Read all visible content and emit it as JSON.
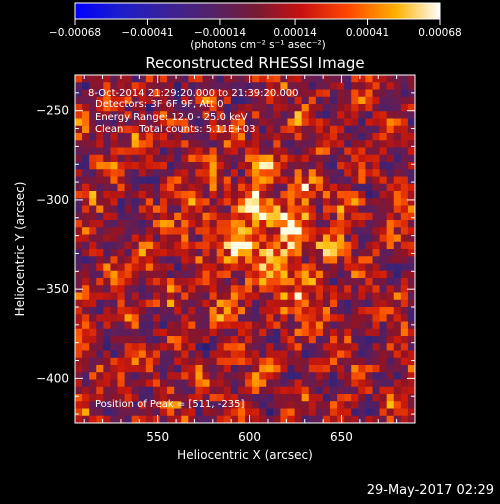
{
  "chart_data": {
    "type": "heatmap",
    "title": "Reconstructed RHESSI Image",
    "xlabel": "Heliocentric X (arcsec)",
    "ylabel": "Heliocentric Y (arcsec)",
    "xlim": [
      505,
      690
    ],
    "ylim": [
      -425,
      -230
    ],
    "x_ticks": [
      550,
      600,
      650
    ],
    "y_ticks": [
      -250,
      -300,
      -350,
      -400
    ],
    "x_tick_labels": [
      "550",
      "600",
      "650"
    ],
    "y_tick_labels": [
      "−250",
      "−300",
      "−350",
      "−400"
    ],
    "colorbar": {
      "ticks": [
        -0.00068,
        -0.00041,
        -0.00014,
        0.00014,
        0.00041,
        0.00068
      ],
      "tick_labels": [
        "−0.00068",
        "−0.00041",
        "−0.00014",
        "0.00014",
        "0.00041",
        "0.00068"
      ],
      "unit_label": "(photons cm⁻² s⁻¹ asec⁻²)",
      "range": [
        -0.00068,
        0.00068
      ]
    },
    "annotations": [
      "8-Oct-2014 21:29:20.000 to 21:39:20.000",
      "Detectors: 3F 6F 9F, Att 0",
      "Energy Range: 12.0 - 25.0 keV",
      "Clean     Total counts: 5.11E+03"
    ],
    "peak_label": "Position of Peak = [511, -235]",
    "colors": {
      "background": "#000000",
      "foreground": "#ffffff"
    }
  },
  "footer": {
    "date": "29-May-2017 02:29"
  }
}
